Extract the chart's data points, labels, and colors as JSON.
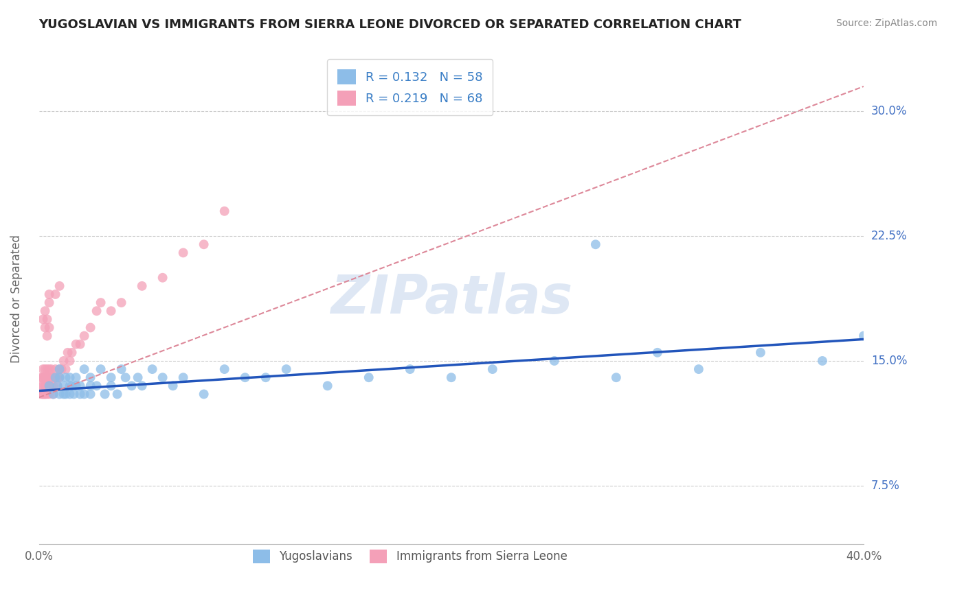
{
  "title": "YUGOSLAVIAN VS IMMIGRANTS FROM SIERRA LEONE DIVORCED OR SEPARATED CORRELATION CHART",
  "source": "Source: ZipAtlas.com",
  "ylabel": "Divorced or Separated",
  "yticks": [
    "7.5%",
    "15.0%",
    "22.5%",
    "30.0%"
  ],
  "ytick_vals": [
    0.075,
    0.15,
    0.225,
    0.3
  ],
  "xlim": [
    0.0,
    0.4
  ],
  "ylim": [
    0.04,
    0.335
  ],
  "r_yugoslavian": 0.132,
  "n_yugoslavian": 58,
  "r_sierraleone": 0.219,
  "n_sierraleone": 68,
  "color_yugo": "#8DBDE8",
  "color_sl": "#F4A0B8",
  "color_yugo_line": "#2255BB",
  "color_sl_line": "#DD8899",
  "watermark": "ZIPatlas",
  "legend_labels": [
    "Yugoslavians",
    "Immigrants from Sierra Leone"
  ],
  "yugo_line_x0": 0.0,
  "yugo_line_y0": 0.132,
  "yugo_line_x1": 0.4,
  "yugo_line_y1": 0.163,
  "sl_line_x0": 0.0,
  "sl_line_y0": 0.128,
  "sl_line_x1": 0.4,
  "sl_line_y1": 0.315,
  "yugo_scatter_x": [
    0.005,
    0.007,
    0.008,
    0.009,
    0.01,
    0.01,
    0.01,
    0.012,
    0.012,
    0.013,
    0.013,
    0.015,
    0.015,
    0.015,
    0.016,
    0.017,
    0.018,
    0.018,
    0.02,
    0.02,
    0.022,
    0.022,
    0.025,
    0.025,
    0.025,
    0.028,
    0.03,
    0.032,
    0.035,
    0.035,
    0.038,
    0.04,
    0.042,
    0.045,
    0.048,
    0.05,
    0.055,
    0.06,
    0.065,
    0.07,
    0.08,
    0.09,
    0.1,
    0.11,
    0.12,
    0.14,
    0.16,
    0.18,
    0.2,
    0.22,
    0.25,
    0.28,
    0.3,
    0.32,
    0.35,
    0.38,
    0.4,
    0.27
  ],
  "yugo_scatter_y": [
    0.135,
    0.13,
    0.14,
    0.135,
    0.13,
    0.145,
    0.14,
    0.13,
    0.135,
    0.14,
    0.13,
    0.135,
    0.14,
    0.13,
    0.135,
    0.13,
    0.14,
    0.135,
    0.13,
    0.135,
    0.145,
    0.13,
    0.135,
    0.13,
    0.14,
    0.135,
    0.145,
    0.13,
    0.14,
    0.135,
    0.13,
    0.145,
    0.14,
    0.135,
    0.14,
    0.135,
    0.145,
    0.14,
    0.135,
    0.14,
    0.13,
    0.145,
    0.14,
    0.14,
    0.145,
    0.135,
    0.14,
    0.145,
    0.14,
    0.145,
    0.15,
    0.14,
    0.155,
    0.145,
    0.155,
    0.15,
    0.165,
    0.22
  ],
  "sl_scatter_x": [
    0.001,
    0.001,
    0.001,
    0.002,
    0.002,
    0.002,
    0.002,
    0.002,
    0.002,
    0.003,
    0.003,
    0.003,
    0.003,
    0.003,
    0.003,
    0.003,
    0.004,
    0.004,
    0.004,
    0.004,
    0.004,
    0.005,
    0.005,
    0.005,
    0.005,
    0.005,
    0.006,
    0.006,
    0.006,
    0.006,
    0.007,
    0.007,
    0.007,
    0.008,
    0.008,
    0.009,
    0.009,
    0.01,
    0.01,
    0.011,
    0.012,
    0.013,
    0.014,
    0.015,
    0.016,
    0.018,
    0.02,
    0.022,
    0.025,
    0.028,
    0.03,
    0.035,
    0.04,
    0.05,
    0.06,
    0.07,
    0.08,
    0.09,
    0.01,
    0.008,
    0.005,
    0.005,
    0.004,
    0.003,
    0.002,
    0.003,
    0.004,
    0.005
  ],
  "sl_scatter_y": [
    0.135,
    0.14,
    0.13,
    0.145,
    0.14,
    0.13,
    0.135,
    0.14,
    0.13,
    0.135,
    0.14,
    0.13,
    0.145,
    0.14,
    0.135,
    0.13,
    0.14,
    0.135,
    0.145,
    0.14,
    0.13,
    0.135,
    0.14,
    0.13,
    0.145,
    0.135,
    0.14,
    0.135,
    0.145,
    0.14,
    0.13,
    0.135,
    0.14,
    0.145,
    0.14,
    0.135,
    0.14,
    0.145,
    0.14,
    0.145,
    0.15,
    0.145,
    0.155,
    0.15,
    0.155,
    0.16,
    0.16,
    0.165,
    0.17,
    0.18,
    0.185,
    0.18,
    0.185,
    0.195,
    0.2,
    0.215,
    0.22,
    0.24,
    0.195,
    0.19,
    0.185,
    0.19,
    0.175,
    0.18,
    0.175,
    0.17,
    0.165,
    0.17
  ]
}
